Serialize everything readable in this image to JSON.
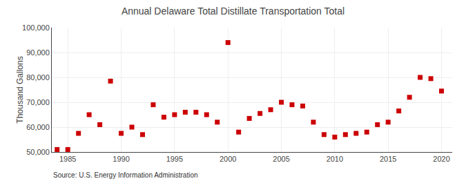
{
  "chart_data": {
    "type": "scatter",
    "title": "Annual Delaware Total Distillate Transportation Total",
    "ylabel": "Thousand Gallons",
    "source": "Source: U.S. Energy Information Administration",
    "color": "#cc0000",
    "marker": "square",
    "x": [
      1984,
      1985,
      1986,
      1987,
      1988,
      1989,
      1990,
      1991,
      1992,
      1993,
      1994,
      1995,
      1996,
      1997,
      1998,
      1999,
      2000,
      2001,
      2002,
      2003,
      2004,
      2005,
      2006,
      2007,
      2008,
      2009,
      2010,
      2011,
      2012,
      2013,
      2014,
      2015,
      2016,
      2017,
      2018,
      2019,
      2020
    ],
    "values": [
      51000,
      51000,
      57500,
      65000,
      61000,
      78500,
      57500,
      60000,
      57000,
      69000,
      64000,
      65000,
      66000,
      66000,
      65000,
      62000,
      94000,
      58000,
      63500,
      65500,
      67000,
      70000,
      69000,
      68500,
      62000,
      57000,
      56000,
      57000,
      57500,
      58000,
      61000,
      62000,
      66500,
      72000,
      80000,
      79500,
      74500
    ],
    "xlim": [
      1983.5,
      2021
    ],
    "xticks": [
      1985,
      1990,
      1995,
      2000,
      2005,
      2010,
      2015,
      2020
    ],
    "ylim": [
      50000,
      100000
    ],
    "yticks": [
      {
        "value": 50000,
        "label": "50,000"
      },
      {
        "value": 60000,
        "label": "60,000"
      },
      {
        "value": 70000,
        "label": "70,000"
      },
      {
        "value": 80000,
        "label": "80,000"
      },
      {
        "value": 90000,
        "label": "90,000"
      },
      {
        "value": 100000,
        "label": "100,000"
      }
    ],
    "grid": true
  }
}
